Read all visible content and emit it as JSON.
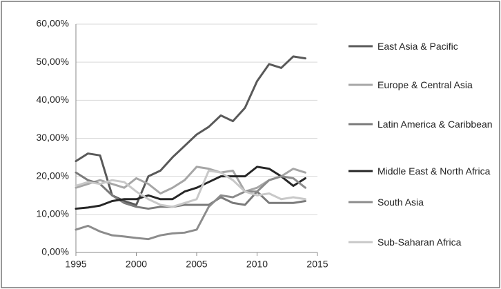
{
  "chart_data": {
    "type": "line",
    "x": [
      1995,
      1996,
      1997,
      1998,
      1999,
      2000,
      2001,
      2002,
      2003,
      2004,
      2005,
      2006,
      2007,
      2008,
      2009,
      2010,
      2011,
      2012,
      2013,
      2014
    ],
    "series": [
      {
        "name": "East Asia & Pacific",
        "color": "#595959",
        "values": [
          24,
          26,
          25.5,
          15,
          13.5,
          12.5,
          20,
          21.5,
          25,
          28,
          31,
          33,
          36,
          34.5,
          38,
          45,
          49.5,
          48.5,
          51.5,
          51
        ]
      },
      {
        "name": "Europe & Central Asia",
        "color": "#a6a6a6",
        "values": [
          17,
          18,
          19,
          18,
          17,
          19.5,
          18,
          15.5,
          17,
          19,
          22.5,
          22,
          21,
          21.5,
          16,
          17,
          19,
          20,
          22,
          21
        ]
      },
      {
        "name": "Latin America & Caribbean",
        "color": "#7a7a7a",
        "values": [
          21,
          19,
          18,
          15,
          13,
          12,
          11.5,
          12,
          12,
          12.5,
          12.5,
          12.5,
          14.5,
          13,
          12.5,
          16,
          13,
          13,
          13,
          13.5
        ]
      },
      {
        "name": "Middle East & North Africa",
        "color": "#262626",
        "values": [
          11.5,
          11.8,
          12.3,
          13.5,
          14,
          14,
          15,
          14,
          14,
          16,
          17,
          18.5,
          20,
          20,
          20,
          22.5,
          22,
          20,
          17.5,
          19.5
        ]
      },
      {
        "name": "South Asia",
        "color": "#8c8c8c",
        "values": [
          6,
          7,
          5.5,
          4.5,
          4.2,
          3.8,
          3.5,
          4.5,
          5,
          5.2,
          6,
          12,
          15,
          14.5,
          16,
          16,
          19,
          20,
          19.5,
          17
        ]
      },
      {
        "name": "Sub-Saharan Africa",
        "color": "#c8c8c8",
        "values": [
          17.5,
          18.5,
          18,
          19,
          18.5,
          16,
          14,
          12.5,
          12,
          13,
          14,
          21.5,
          21,
          19,
          16,
          15,
          15.5,
          14,
          14.5,
          14
        ]
      }
    ],
    "xlim": [
      1995,
      2015
    ],
    "xticks": [
      1995,
      2000,
      2005,
      2010,
      2015
    ],
    "ylim": [
      0,
      60
    ],
    "yticks": [
      {
        "value": 0,
        "label": "0,00%"
      },
      {
        "value": 10,
        "label": "10,00%"
      },
      {
        "value": 20,
        "label": "20,00%"
      },
      {
        "value": 30,
        "label": "30,00%"
      },
      {
        "value": 40,
        "label": "40,00%"
      },
      {
        "value": 50,
        "label": "50,00%"
      },
      {
        "value": 60,
        "label": "60,00%"
      }
    ],
    "grid": true,
    "legend": "right"
  }
}
